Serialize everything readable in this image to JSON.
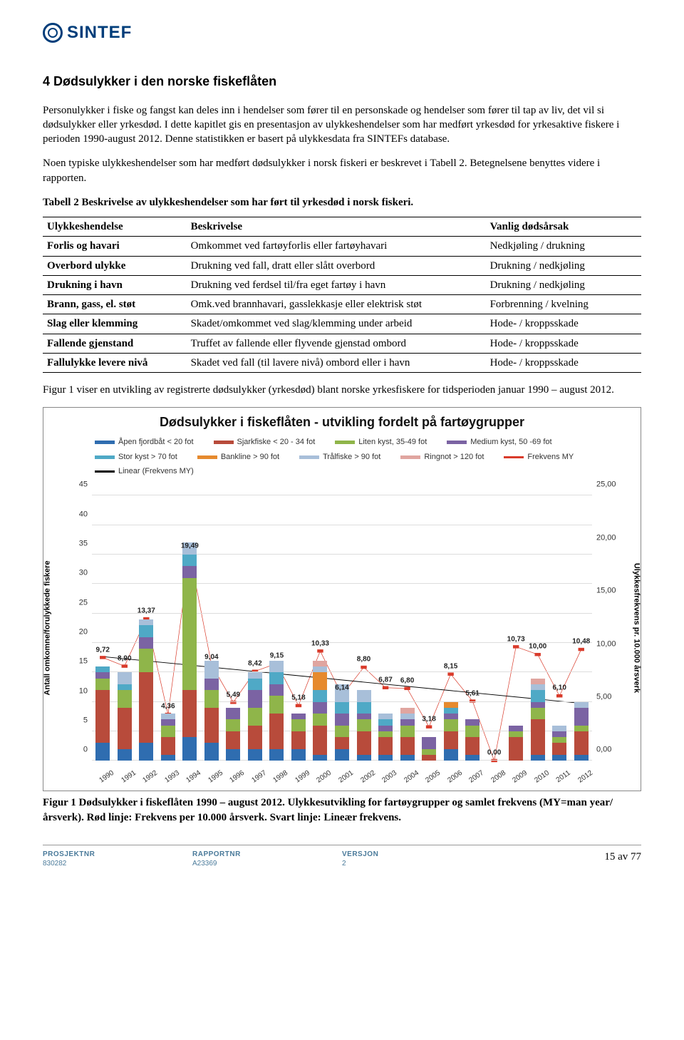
{
  "logo_text": "SINTEF",
  "section_title": "4  Dødsulykker i den norske fiskeflåten",
  "para1": "Personulykker i fiske og fangst kan deles inn i hendelser som fører til en personskade og hendelser som fører til tap av liv, det vil si dødsulykker eller yrkesdød. I dette kapitlet gis en presentasjon av ulykkeshendelser som har medført yrkesdød for yrkesaktive fiskere i perioden 1990-august 2012. Denne statistikken er basert på ulykkesdata fra SINTEFs database.",
  "para2": "Noen typiske ulykkeshendelser som har medført dødsulykker i norsk fiskeri er beskrevet i Tabell 2. Betegnelsene benyttes videre i rapporten.",
  "table_caption": "Tabell 2 Beskrivelse av ulykkeshendelser som har ført til yrkesdød i norsk fiskeri.",
  "table_headers": [
    "Ulykkeshendelse",
    "Beskrivelse",
    "Vanlig dødsårsak"
  ],
  "table_rows": [
    [
      "Forlis og havari",
      "Omkommet ved fartøyforlis eller fartøyhavari",
      "Nedkjøling / drukning"
    ],
    [
      "Overbord ulykke",
      "Drukning ved fall, dratt eller slått overbord",
      "Drukning / nedkjøling"
    ],
    [
      "Drukning i havn",
      "Drukning ved ferdsel til/fra eget fartøy i havn",
      "Drukning / nedkjøling"
    ],
    [
      "Brann, gass, el. støt",
      "Omk.ved brannhavari, gasslekkasje eller elektrisk støt",
      "Forbrenning / kvelning"
    ],
    [
      "Slag eller klemming",
      "Skadet/omkommet ved slag/klemming under arbeid",
      "Hode- / kroppsskade"
    ],
    [
      "Fallende gjenstand",
      "Truffet av fallende eller flyvende gjenstad ombord",
      "Hode- / kroppsskade"
    ],
    [
      "Fallulykke levere nivå",
      "Skadet ved fall (til lavere nivå) ombord eller i havn",
      "Hode- / kroppsskade"
    ]
  ],
  "pre_fig_text": "Figur 1 viser en utvikling av registrerte dødsulykker (yrkesdød) blant norske yrkesfiskere for tidsperioden januar 1990 – august 2012.",
  "chart": {
    "title": "Dødsulykker i fiskeflåten - utvikling fordelt på fartøygrupper",
    "legend": [
      {
        "label": "Åpen fjordbåt < 20 fot",
        "color": "#2f6db0",
        "type": "bar"
      },
      {
        "label": "Sjarkfiske < 20 - 34 fot",
        "color": "#b84b3b",
        "type": "bar"
      },
      {
        "label": "Liten kyst, 35-49 fot",
        "color": "#8fb54a",
        "type": "bar"
      },
      {
        "label": "Medium kyst, 50 -69 fot",
        "color": "#7b63a3",
        "type": "bar"
      },
      {
        "label": "Stor kyst > 70 fot",
        "color": "#4fa9c6",
        "type": "bar"
      },
      {
        "label": "Bankline > 90 fot",
        "color": "#e68a2e",
        "type": "bar"
      },
      {
        "label": "Trålfiske > 90 fot",
        "color": "#a8bfd9",
        "type": "bar"
      },
      {
        "label": "Ringnot > 120 fot",
        "color": "#e0a5a0",
        "type": "bar"
      },
      {
        "label": "Frekvens MY",
        "color": "#d93b2b",
        "type": "line"
      },
      {
        "label": "Linear (Frekvens MY)",
        "color": "#000000",
        "type": "line"
      }
    ],
    "y_left": {
      "label": "Antall omkomne/forulykkede fiskere",
      "min": 0,
      "max": 45,
      "step": 5
    },
    "y_right": {
      "label": "Ulykkesfrekvens pr. 10.000 årsverk",
      "min": 0,
      "max": 25,
      "step": 5,
      "format": ",00"
    },
    "years": [
      1990,
      1991,
      1992,
      1993,
      1994,
      1995,
      1996,
      1997,
      1998,
      1999,
      2000,
      2001,
      2002,
      2003,
      2004,
      2005,
      2006,
      2007,
      2008,
      2009,
      2010,
      2011,
      2012
    ],
    "bars": [
      [
        3,
        9,
        2,
        1,
        1,
        0,
        0,
        0
      ],
      [
        2,
        7,
        3,
        0,
        1,
        0,
        2,
        0
      ],
      [
        3,
        12,
        4,
        2,
        2,
        0,
        1,
        0
      ],
      [
        1,
        3,
        2,
        1,
        0,
        0,
        1,
        0
      ],
      [
        4,
        8,
        19,
        2,
        2,
        0,
        2,
        0
      ],
      [
        3,
        6,
        3,
        2,
        0,
        0,
        3,
        0
      ],
      [
        2,
        3,
        2,
        2,
        0,
        0,
        0,
        0
      ],
      [
        2,
        4,
        3,
        3,
        2,
        0,
        1,
        0
      ],
      [
        2,
        6,
        3,
        2,
        2,
        0,
        2,
        0
      ],
      [
        2,
        3,
        2,
        1,
        0,
        0,
        0,
        0
      ],
      [
        1,
        5,
        2,
        2,
        2,
        3,
        1,
        1
      ],
      [
        2,
        2,
        2,
        2,
        2,
        0,
        3,
        0
      ],
      [
        1,
        4,
        2,
        1,
        2,
        0,
        2,
        0
      ],
      [
        1,
        3,
        1,
        1,
        1,
        0,
        1,
        0
      ],
      [
        1,
        3,
        2,
        1,
        0,
        0,
        1,
        1
      ],
      [
        0,
        1,
        1,
        2,
        0,
        0,
        0,
        0
      ],
      [
        2,
        3,
        2,
        1,
        1,
        1,
        0,
        0
      ],
      [
        1,
        3,
        2,
        1,
        0,
        0,
        0,
        0
      ],
      [
        0,
        0,
        0,
        0,
        0,
        0,
        0,
        0
      ],
      [
        0,
        4,
        1,
        1,
        0,
        0,
        0,
        0
      ],
      [
        1,
        6,
        2,
        1,
        2,
        0,
        1,
        1
      ],
      [
        1,
        2,
        1,
        1,
        0,
        0,
        1,
        0
      ],
      [
        1,
        4,
        1,
        3,
        0,
        0,
        1,
        0
      ]
    ],
    "freq": [
      9.72,
      8.9,
      13.37,
      4.36,
      19.49,
      9.04,
      5.49,
      8.42,
      9.15,
      5.18,
      10.33,
      6.14,
      8.8,
      6.87,
      6.8,
      3.18,
      8.15,
      5.61,
      0.0,
      10.73,
      10.0,
      6.1,
      10.48
    ],
    "freq_labels": [
      "9,72",
      "8,90",
      "13,37",
      "4,36",
      "19,49",
      "9,04",
      "5,49",
      "8,42",
      "9,15",
      "5,18",
      "10,33",
      "6,14",
      "8,80",
      "6,87",
      "6,80",
      "3,18",
      "8,15",
      "5,61",
      "0,00",
      "10,73",
      "10,00",
      "6,10",
      "10,48"
    ],
    "linear_start": 9.8,
    "linear_end": 5.4,
    "colors": [
      "#2f6db0",
      "#b84b3b",
      "#8fb54a",
      "#7b63a3",
      "#4fa9c6",
      "#e68a2e",
      "#a8bfd9",
      "#e0a5a0"
    ],
    "freq_color": "#d93b2b",
    "linear_color": "#000000",
    "grid_color": "#dddddd"
  },
  "fig_caption": "Figur 1 Dødsulykker i fiskeflåten 1990 – august 2012. Ulykkesutvikling for fartøygrupper og samlet frekvens (MY=man year/årsverk). Rød linje: Frekvens per 10.000 årsverk. Svart linje: Lineær frekvens.",
  "footer": {
    "c1_label": "PROSJEKTNR",
    "c1_val": "830282",
    "c2_label": "RAPPORTNR",
    "c2_val": "A23369",
    "c3_label": "VERSJON",
    "c3_val": "2",
    "page": "15 av 77"
  }
}
